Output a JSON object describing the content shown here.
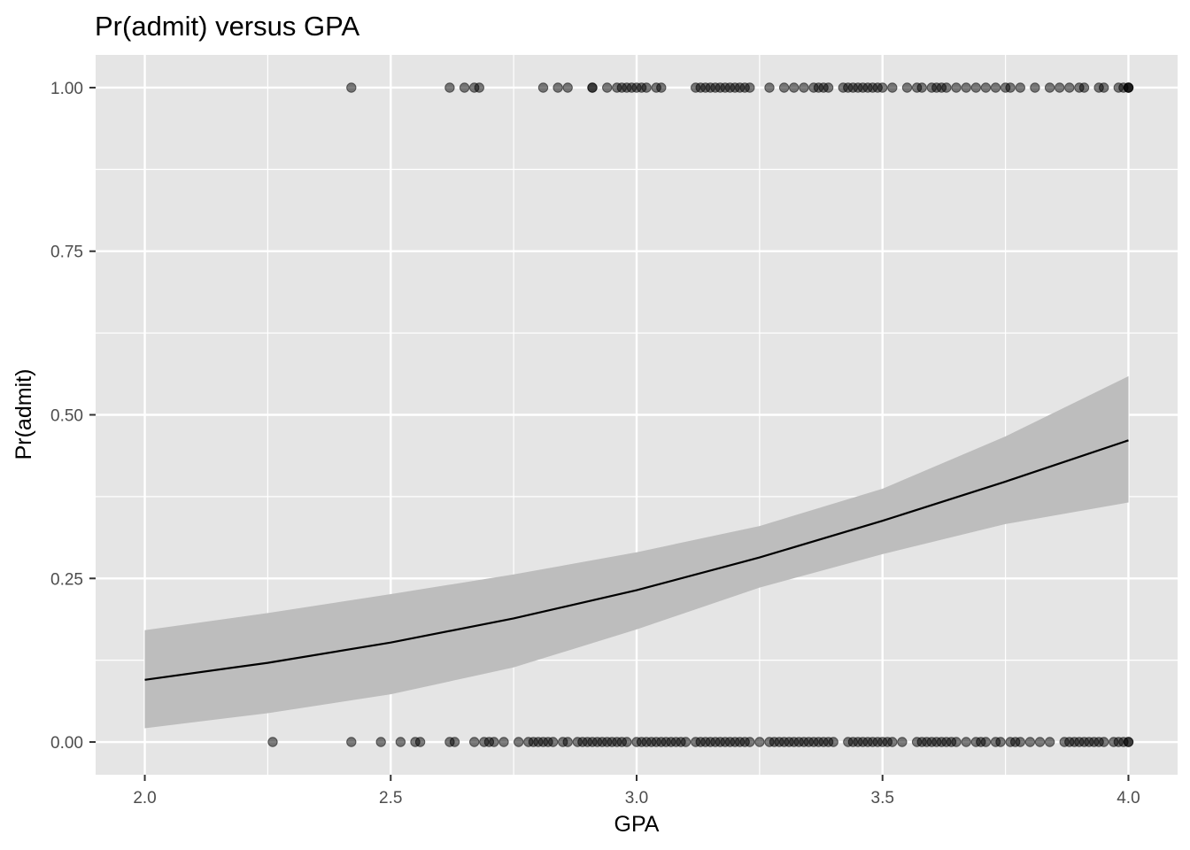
{
  "chart_data": {
    "type": "scatter",
    "title": "Pr(admit) versus GPA",
    "xlabel": "GPA",
    "ylabel": "Pr(admit)",
    "xlim": [
      1.9,
      4.1
    ],
    "ylim": [
      -0.05,
      1.05
    ],
    "x_ticks": [
      2.0,
      2.5,
      3.0,
      3.5,
      4.0
    ],
    "x_tick_labels": [
      "2.0",
      "2.5",
      "3.0",
      "3.5",
      "4.0"
    ],
    "y_ticks": [
      0.0,
      0.25,
      0.5,
      0.75,
      1.0
    ],
    "y_tick_labels": [
      "0.00",
      "0.25",
      "0.50",
      "0.75",
      "1.00"
    ],
    "grid": true,
    "legend": "none",
    "colors": {
      "panel": "#e5e5e5",
      "grid": "#ffffff",
      "points": "#000000",
      "ribbon": "#bdbdbd",
      "line": "#000000"
    },
    "series": [
      {
        "kind": "points",
        "y": 1,
        "x": [
          2.42,
          2.62,
          2.65,
          2.67,
          2.68,
          2.81,
          2.84,
          2.86,
          2.91,
          2.91,
          2.94,
          2.96,
          2.97,
          2.98,
          2.99,
          3.0,
          3.01,
          3.02,
          3.04,
          3.05,
          3.12,
          3.13,
          3.14,
          3.15,
          3.16,
          3.17,
          3.18,
          3.19,
          3.2,
          3.21,
          3.22,
          3.23,
          3.27,
          3.3,
          3.32,
          3.34,
          3.36,
          3.37,
          3.38,
          3.39,
          3.42,
          3.43,
          3.44,
          3.45,
          3.46,
          3.47,
          3.48,
          3.49,
          3.5,
          3.52,
          3.55,
          3.57,
          3.58,
          3.6,
          3.61,
          3.62,
          3.63,
          3.65,
          3.67,
          3.69,
          3.71,
          3.73,
          3.75,
          3.76,
          3.78,
          3.81,
          3.84,
          3.86,
          3.88,
          3.9,
          3.91,
          3.94,
          3.95,
          3.98,
          3.99,
          4.0,
          4.0,
          4.0
        ]
      },
      {
        "kind": "points",
        "y": 0,
        "x": [
          2.26,
          2.42,
          2.48,
          2.52,
          2.55,
          2.56,
          2.62,
          2.63,
          2.67,
          2.69,
          2.7,
          2.71,
          2.73,
          2.76,
          2.78,
          2.79,
          2.8,
          2.81,
          2.82,
          2.83,
          2.85,
          2.86,
          2.88,
          2.89,
          2.9,
          2.91,
          2.92,
          2.93,
          2.94,
          2.95,
          2.96,
          2.97,
          2.98,
          3.0,
          3.01,
          3.02,
          3.03,
          3.04,
          3.05,
          3.06,
          3.07,
          3.08,
          3.09,
          3.1,
          3.12,
          3.13,
          3.14,
          3.15,
          3.16,
          3.17,
          3.18,
          3.19,
          3.2,
          3.21,
          3.22,
          3.23,
          3.25,
          3.27,
          3.28,
          3.29,
          3.3,
          3.31,
          3.32,
          3.33,
          3.34,
          3.35,
          3.36,
          3.37,
          3.38,
          3.39,
          3.4,
          3.43,
          3.44,
          3.45,
          3.46,
          3.47,
          3.48,
          3.49,
          3.5,
          3.51,
          3.52,
          3.54,
          3.57,
          3.58,
          3.59,
          3.6,
          3.61,
          3.62,
          3.63,
          3.64,
          3.65,
          3.67,
          3.69,
          3.7,
          3.71,
          3.73,
          3.74,
          3.76,
          3.77,
          3.78,
          3.8,
          3.82,
          3.84,
          3.87,
          3.88,
          3.89,
          3.9,
          3.91,
          3.92,
          3.93,
          3.94,
          3.95,
          3.97,
          3.98,
          3.99,
          4.0,
          4.0
        ]
      },
      {
        "kind": "line",
        "x": [
          2.0,
          2.25,
          2.5,
          2.75,
          3.0,
          3.25,
          3.5,
          3.75,
          4.0
        ],
        "y": [
          0.095,
          0.121,
          0.152,
          0.189,
          0.232,
          0.282,
          0.338,
          0.398,
          0.461
        ]
      },
      {
        "kind": "ribbon",
        "x": [
          2.0,
          2.25,
          2.5,
          2.75,
          3.0,
          3.25,
          3.5,
          3.75,
          4.0
        ],
        "ymin": [
          0.021,
          0.044,
          0.073,
          0.114,
          0.172,
          0.236,
          0.287,
          0.333,
          0.366
        ],
        "ymax": [
          0.171,
          0.197,
          0.226,
          0.256,
          0.29,
          0.33,
          0.387,
          0.467,
          0.559
        ]
      }
    ]
  }
}
